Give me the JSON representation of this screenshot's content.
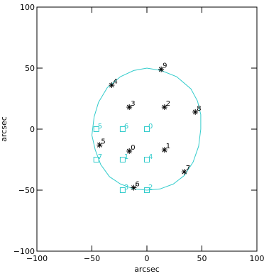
{
  "chart_data": {
    "type": "scatter",
    "xlabel": "arcsec",
    "ylabel": "arcsec",
    "xlim": [
      -100,
      100
    ],
    "ylim": [
      -100,
      100
    ],
    "xticks": [
      -100,
      -50,
      0,
      50,
      100
    ],
    "yticks": [
      -100,
      -50,
      0,
      50,
      100
    ],
    "xtick_labels": [
      "−100",
      "−50",
      "0",
      "50",
      "100"
    ],
    "ytick_labels": [
      "−100",
      "−50",
      "0",
      "50",
      "100"
    ],
    "grid": false,
    "colors": {
      "axes": "#000000",
      "stars": "#000000",
      "squares": "#33cccc",
      "boundary": "#33cccc"
    },
    "boundary": [
      [
        0,
        50
      ],
      [
        13,
        48
      ],
      [
        27,
        43
      ],
      [
        40,
        33
      ],
      [
        46,
        23
      ],
      [
        49,
        12
      ],
      [
        49,
        0
      ],
      [
        47,
        -14
      ],
      [
        42,
        -27
      ],
      [
        34,
        -38
      ],
      [
        24,
        -45
      ],
      [
        12,
        -49
      ],
      [
        0,
        -50
      ],
      [
        -12,
        -49
      ],
      [
        -24,
        -45
      ],
      [
        -34,
        -39
      ],
      [
        -42,
        -29
      ],
      [
        -47,
        -17
      ],
      [
        -50,
        -5
      ],
      [
        -48,
        10
      ],
      [
        -44,
        22
      ],
      [
        -36,
        34
      ],
      [
        -24,
        43
      ],
      [
        -12,
        48
      ],
      [
        0,
        50
      ]
    ],
    "stars": [
      {
        "label": "0",
        "x": -16,
        "y": -18
      },
      {
        "label": "1",
        "x": 16,
        "y": -17
      },
      {
        "label": "2",
        "x": 16,
        "y": 18
      },
      {
        "label": "3",
        "x": -16,
        "y": 18
      },
      {
        "label": "4",
        "x": -32,
        "y": 36
      },
      {
        "label": "5",
        "x": -43,
        "y": -13
      },
      {
        "label": "6",
        "x": -12,
        "y": -48
      },
      {
        "label": "7",
        "x": 34,
        "y": -35
      },
      {
        "label": "8",
        "x": 44,
        "y": 14
      },
      {
        "label": "9",
        "x": 13,
        "y": 49
      }
    ],
    "squares": [
      {
        "label": "0",
        "x": 0,
        "y": 0
      },
      {
        "label": "1",
        "x": -22,
        "y": -25
      },
      {
        "label": "2",
        "x": 0,
        "y": -50
      },
      {
        "label": "3",
        "x": -22,
        "y": -50
      },
      {
        "label": "4",
        "x": 0,
        "y": -25
      },
      {
        "label": "5",
        "x": -46,
        "y": 0
      },
      {
        "label": "6",
        "x": -22,
        "y": 0
      },
      {
        "label": "7",
        "x": -46,
        "y": -25
      }
    ]
  }
}
